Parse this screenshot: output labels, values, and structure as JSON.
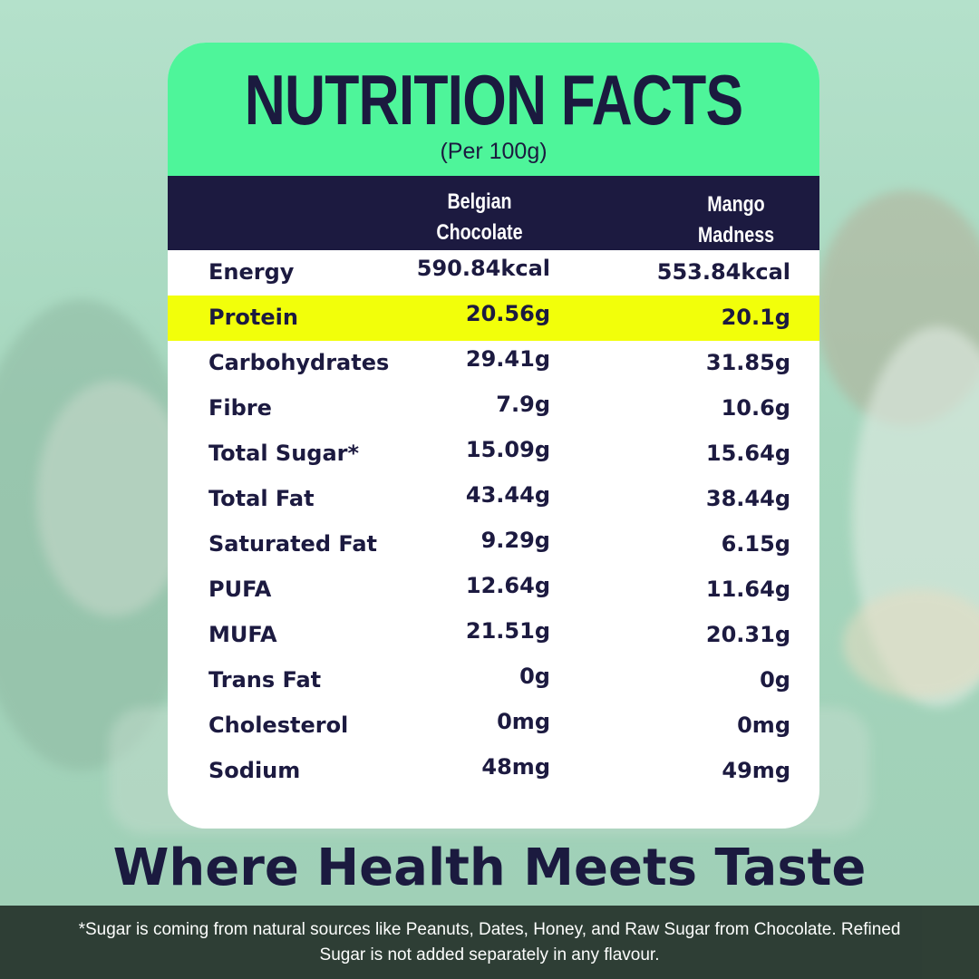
{
  "card": {
    "title": "NUTRITION FACTS",
    "subtitle": "(Per 100g)",
    "columns": {
      "col1_line1": "Belgian",
      "col1_line2": "Chocolate",
      "col2_line1": "Mango",
      "col2_line2": "Madness"
    },
    "rows": [
      {
        "label": "Energy",
        "v1": "590.84kcal",
        "v2": "553.84kcal"
      },
      {
        "label": "Protein",
        "v1": "20.56g",
        "v2": "20.1g"
      },
      {
        "label": "Carbohydrates",
        "v1": "29.41g",
        "v2": "31.85g"
      },
      {
        "label": "Fibre",
        "v1": "7.9g",
        "v2": "10.6g"
      },
      {
        "label": "Total Sugar*",
        "v1": "15.09g",
        "v2": "15.64g"
      },
      {
        "label": "Total Fat",
        "v1": "43.44g",
        "v2": "38.44g"
      },
      {
        "label": "Saturated Fat",
        "v1": "9.29g",
        "v2": "6.15g"
      },
      {
        "label": "PUFA",
        "v1": "12.64g",
        "v2": "11.64g"
      },
      {
        "label": "MUFA",
        "v1": "21.51g",
        "v2": "20.31g"
      },
      {
        "label": "Trans Fat",
        "v1": "0g",
        "v2": "0g"
      },
      {
        "label": "Cholesterol",
        "v1": "0mg",
        "v2": "0mg"
      },
      {
        "label": "Sodium",
        "v1": "48mg",
        "v2": "49mg"
      }
    ],
    "highlight_color": "#f2ff0a",
    "header_color": "#4ef59a",
    "column_header_color": "#1c1a40"
  },
  "tagline": "Where Health Meets Taste",
  "footnote": {
    "line1": "*Sugar is coming from natural sources like Peanuts, Dates, Honey, and Raw Sugar from Chocolate. Refined",
    "line2": "Sugar is not added separately in any flavour."
  }
}
